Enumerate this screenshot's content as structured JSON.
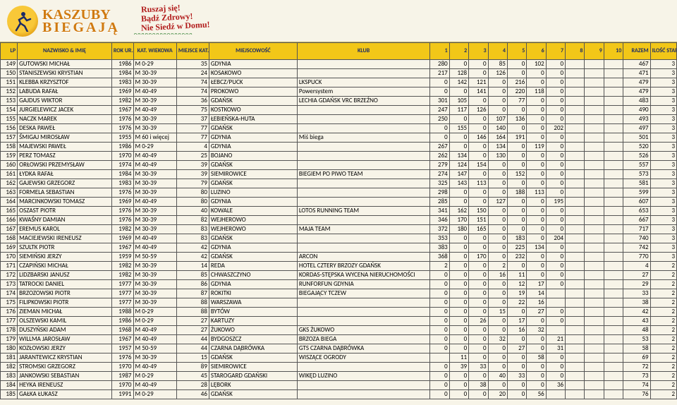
{
  "banner": {
    "logo_main": "KASZUBY",
    "logo_sub": "BIEGAJĄ",
    "slogan_l1": "Ruszaj się!",
    "slogan_l2": "Bądź Zdrowy!",
    "slogan_l3": "Nie Siedź w Domu!",
    "grass": "ᴖᴖᴖᴖᴖᴖᴖᴖᴖᴖᴖᴖᴖᴖᴖᴖ"
  },
  "headers": {
    "lp": "LP",
    "name": "NAZWISKO & IMIĘ",
    "rok": "ROK UR.",
    "kat": "KAT. WIEKOWA",
    "mkat": "MIEJSCE KAT. WIEKOWA",
    "msc": "MIEJSCOWOŚĆ",
    "klub": "KLUB",
    "s1": "1",
    "s2": "2",
    "s3": "3",
    "s4": "4",
    "s5": "5",
    "s6": "6",
    "s7": "7",
    "s8": "8",
    "s9": "9",
    "s10": "10",
    "razem": "RAZEM",
    "ilosc": "ILOŚĆ STARTÓW"
  },
  "rows": [
    {
      "lp": 149,
      "name": "GUTOWSKI MICHAŁ",
      "rok": 1986,
      "kat": "M 0-29",
      "mkat": 35,
      "msc": "GDYNIA",
      "klub": "",
      "s": [
        280,
        0,
        0,
        85,
        0,
        102,
        0,
        "",
        "",
        ""
      ],
      "razem": 467,
      "ilosc": 3
    },
    {
      "lp": 150,
      "name": "STANISZEWSKI KRYSTIAN",
      "rok": 1984,
      "kat": "M 30-39",
      "mkat": 24,
      "msc": "KOSAKOWO",
      "klub": "",
      "s": [
        217,
        128,
        0,
        126,
        0,
        0,
        0,
        "",
        "",
        ""
      ],
      "razem": 471,
      "ilosc": 3
    },
    {
      "lp": 151,
      "name": "KLEBBA KRZYSZTOF",
      "rok": 1983,
      "kat": "M 30-39",
      "mkat": 74,
      "msc": "ŁEBCZ/PUCK",
      "klub": "LKSPUCK",
      "s": [
        0,
        142,
        121,
        0,
        216,
        0,
        0,
        "",
        "",
        ""
      ],
      "razem": 479,
      "ilosc": 3
    },
    {
      "lp": 152,
      "name": "LABUDA RAFAŁ",
      "rok": 1969,
      "kat": "M 40-49",
      "mkat": 74,
      "msc": "PROKOWO",
      "klub": "Powersystem",
      "s": [
        0,
        0,
        141,
        0,
        220,
        118,
        0,
        "",
        "",
        ""
      ],
      "razem": 479,
      "ilosc": 3
    },
    {
      "lp": 153,
      "name": "GAJDUS WIKTOR",
      "rok": 1982,
      "kat": "M 30-39",
      "mkat": 36,
      "msc": "GDAŃSK",
      "klub": "LECHIA GDAŃSK VRC BRZEŹNO",
      "s": [
        301,
        105,
        0,
        0,
        77,
        0,
        0,
        "",
        "",
        ""
      ],
      "razem": 483,
      "ilosc": 3
    },
    {
      "lp": 154,
      "name": "JURGIELEWICZ JACEK",
      "rok": 1967,
      "kat": "M 40-49",
      "mkat": 75,
      "msc": "KOSTKOWO",
      "klub": "",
      "s": [
        247,
        117,
        126,
        0,
        0,
        0,
        0,
        "",
        "",
        ""
      ],
      "razem": 490,
      "ilosc": 3
    },
    {
      "lp": 155,
      "name": "NACZK MAREK",
      "rok": 1976,
      "kat": "M 30-39",
      "mkat": 37,
      "msc": "ŁEBIEŃSKA-HUTA",
      "klub": "",
      "s": [
        250,
        0,
        0,
        107,
        136,
        0,
        0,
        "",
        "",
        ""
      ],
      "razem": 493,
      "ilosc": 3
    },
    {
      "lp": 156,
      "name": "DESKA PAWEŁ",
      "rok": 1976,
      "kat": "M 30-39",
      "mkat": 77,
      "msc": "GDAŃSK",
      "klub": "",
      "s": [
        0,
        155,
        0,
        140,
        0,
        0,
        202,
        "",
        "",
        ""
      ],
      "razem": 497,
      "ilosc": 3
    },
    {
      "lp": 157,
      "name": "ŚMIGAJ MIROSŁAW",
      "rok": 1955,
      "kat": "M 60 i więcej",
      "mkat": 77,
      "msc": "GDYNIA",
      "klub": "Miś biega",
      "s": [
        0,
        0,
        146,
        164,
        191,
        0,
        0,
        "",
        "",
        ""
      ],
      "razem": 501,
      "ilosc": 3
    },
    {
      "lp": 158,
      "name": "MAJEWSKI PAWEŁ",
      "rok": 1986,
      "kat": "M 0-29",
      "mkat": 4,
      "msc": "GDYNIA",
      "klub": "",
      "s": [
        267,
        0,
        0,
        134,
        0,
        119,
        0,
        "",
        "",
        ""
      ],
      "razem": 520,
      "ilosc": 3
    },
    {
      "lp": 159,
      "name": "PERZ TOMASZ",
      "rok": 1970,
      "kat": "M 40-49",
      "mkat": 25,
      "msc": "BOJANO",
      "klub": "",
      "s": [
        262,
        134,
        0,
        130,
        0,
        0,
        0,
        "",
        "",
        ""
      ],
      "razem": 526,
      "ilosc": 3
    },
    {
      "lp": 160,
      "name": "ORŁOWSKI PRZEMYSŁAW",
      "rok": 1974,
      "kat": "M 40-49",
      "mkat": 39,
      "msc": "GDAŃSK",
      "klub": "",
      "s": [
        279,
        124,
        154,
        0,
        0,
        0,
        0,
        "",
        "",
        ""
      ],
      "razem": 557,
      "ilosc": 3
    },
    {
      "lp": 161,
      "name": "ŁYDKA RAFAŁ",
      "rok": 1984,
      "kat": "M 30-39",
      "mkat": 39,
      "msc": "SIEMIROWICE",
      "klub": "BIEGIEM PO PIWO TEAM",
      "s": [
        274,
        147,
        0,
        0,
        152,
        0,
        0,
        "",
        "",
        ""
      ],
      "razem": 573,
      "ilosc": 3
    },
    {
      "lp": 162,
      "name": "GAJEWSKI GRZEGORZ",
      "rok": 1983,
      "kat": "M 30-39",
      "mkat": 79,
      "msc": "GDAŃSK",
      "klub": "",
      "s": [
        325,
        143,
        113,
        0,
        0,
        0,
        0,
        "",
        "",
        ""
      ],
      "razem": 581,
      "ilosc": 3
    },
    {
      "lp": 163,
      "name": "FORMELA SEBASTIAN",
      "rok": 1976,
      "kat": "M 30-39",
      "mkat": 80,
      "msc": "LUZINO",
      "klub": "",
      "s": [
        298,
        0,
        0,
        0,
        188,
        113,
        0,
        "",
        "",
        ""
      ],
      "razem": 599,
      "ilosc": 3
    },
    {
      "lp": 164,
      "name": "MARCINKOWSKI TOMASZ",
      "rok": 1969,
      "kat": "M 40-49",
      "mkat": 80,
      "msc": "GDYNIA",
      "klub": "",
      "s": [
        285,
        0,
        0,
        127,
        0,
        0,
        195,
        "",
        "",
        ""
      ],
      "razem": 607,
      "ilosc": 3
    },
    {
      "lp": 165,
      "name": "OSZAST PIOTR",
      "rok": 1976,
      "kat": "M 30-39",
      "mkat": 40,
      "msc": "KOWALE",
      "klub": "LOTOS RUNNING TEAM",
      "s": [
        341,
        162,
        150,
        0,
        0,
        0,
        0,
        "",
        "",
        ""
      ],
      "razem": 653,
      "ilosc": 3
    },
    {
      "lp": 166,
      "name": "KWAŚNY DAMIAN",
      "rok": 1976,
      "kat": "M 30-39",
      "mkat": 82,
      "msc": "WEJHEROWO",
      "klub": "",
      "s": [
        346,
        170,
        151,
        0,
        0,
        0,
        0,
        "",
        "",
        ""
      ],
      "razem": 667,
      "ilosc": 3
    },
    {
      "lp": 167,
      "name": "EREMUS KAROL",
      "rok": 1982,
      "kat": "M 30-39",
      "mkat": 83,
      "msc": "WEJHEROWO",
      "klub": "MAJA TEAM",
      "s": [
        372,
        180,
        165,
        0,
        0,
        0,
        0,
        "",
        "",
        ""
      ],
      "razem": 717,
      "ilosc": 3
    },
    {
      "lp": 168,
      "name": "MACIEJEWSKI IRENEUSZ",
      "rok": 1969,
      "kat": "M 40-49",
      "mkat": 83,
      "msc": "GDAŃSK",
      "klub": "",
      "s": [
        353,
        0,
        0,
        0,
        183,
        0,
        204,
        "",
        "",
        ""
      ],
      "razem": 740,
      "ilosc": 3
    },
    {
      "lp": 169,
      "name": "SZULTK PIOTR",
      "rok": 1967,
      "kat": "M 40-49",
      "mkat": 42,
      "msc": "GDYNIA",
      "klub": "",
      "s": [
        383,
        0,
        0,
        0,
        225,
        134,
        0,
        "",
        "",
        ""
      ],
      "razem": 742,
      "ilosc": 3
    },
    {
      "lp": 170,
      "name": "SIEMIŃSKI JERZY",
      "rok": 1959,
      "kat": "M 50-59",
      "mkat": 42,
      "msc": "GDAŃSK",
      "klub": "ARCON",
      "s": [
        368,
        0,
        170,
        0,
        232,
        0,
        0,
        "",
        "",
        ""
      ],
      "razem": 770,
      "ilosc": 3
    },
    {
      "lp": 171,
      "name": "CZAPIŃSKI MICHAŁ",
      "rok": 1982,
      "kat": "M 30-39",
      "mkat": 14,
      "msc": "REDA",
      "klub": "HOTEL CZTERY BRZOZY GDAŃSK",
      "s": [
        2,
        0,
        0,
        2,
        0,
        0,
        0,
        "",
        "",
        ""
      ],
      "razem": 4,
      "ilosc": 2
    },
    {
      "lp": 172,
      "name": "LIDZBARSKI JANUSZ",
      "rok": 1982,
      "kat": "M 30-39",
      "mkat": 85,
      "msc": "CHWASZCZYNO",
      "klub": "KORDAS-STĘPSKA WYCENA NIERUCHOMOŚCI",
      "s": [
        0,
        0,
        0,
        16,
        11,
        0,
        0,
        "",
        "",
        ""
      ],
      "razem": 27,
      "ilosc": 2
    },
    {
      "lp": 173,
      "name": "TATROCKI DANIEL",
      "rok": 1977,
      "kat": "M 30-39",
      "mkat": 86,
      "msc": "GDYNIA",
      "klub": "RUNFORFUN GDYNIA",
      "s": [
        0,
        0,
        0,
        0,
        12,
        17,
        0,
        "",
        "",
        ""
      ],
      "razem": 29,
      "ilosc": 2
    },
    {
      "lp": 174,
      "name": "BRZOZOWSKI PIOTR",
      "rok": 1977,
      "kat": "M 30-39",
      "mkat": 87,
      "msc": "ROKITKI",
      "klub": "BIEGAJĄCY TCZEW",
      "s": [
        0,
        0,
        0,
        0,
        19,
        14,
        "",
        "",
        "",
        ""
      ],
      "razem": 33,
      "ilosc": 2
    },
    {
      "lp": 175,
      "name": "FILIPKOWSKI PIOTR",
      "rok": 1977,
      "kat": "M 30-39",
      "mkat": 88,
      "msc": "WARSZAWA",
      "klub": "",
      "s": [
        0,
        0,
        0,
        0,
        22,
        16,
        "",
        "",
        "",
        ""
      ],
      "razem": 38,
      "ilosc": 2
    },
    {
      "lp": 176,
      "name": "ZIEMAN MICHAŁ",
      "rok": 1988,
      "kat": "M 0-29",
      "mkat": 88,
      "msc": "BYTÓW",
      "klub": "",
      "s": [
        0,
        0,
        0,
        15,
        0,
        27,
        0,
        "",
        "",
        ""
      ],
      "razem": 42,
      "ilosc": 2
    },
    {
      "lp": 177,
      "name": "OLSZEWSKI KAMIL",
      "rok": 1986,
      "kat": "M 0-29",
      "mkat": 27,
      "msc": "KARTUZY",
      "klub": "",
      "s": [
        0,
        0,
        26,
        0,
        17,
        0,
        0,
        "",
        "",
        ""
      ],
      "razem": 43,
      "ilosc": 2
    },
    {
      "lp": 178,
      "name": "DUSZYŃSKI ADAM",
      "rok": 1968,
      "kat": "M 40-49",
      "mkat": 27,
      "msc": "ŻUKOWO",
      "klub": "GKS ŻUKOWO",
      "s": [
        0,
        0,
        0,
        0,
        16,
        32,
        "",
        "",
        "",
        ""
      ],
      "razem": 48,
      "ilosc": 2
    },
    {
      "lp": 179,
      "name": "WILLMA JAROSŁAW",
      "rok": 1967,
      "kat": "M 40-49",
      "mkat": 44,
      "msc": "BYDGOSZCZ",
      "klub": "BRZOZA BIEGA",
      "s": [
        0,
        0,
        0,
        32,
        0,
        0,
        21,
        "",
        "",
        ""
      ],
      "razem": 53,
      "ilosc": 2
    },
    {
      "lp": 180,
      "name": "KOZŁOWSKI JERZY",
      "rok": 1957,
      "kat": "M 50-59",
      "mkat": 44,
      "msc": "CZARNA DĄBRÓWKA",
      "klub": "GTS CZARNA DĄBRÓWKA",
      "s": [
        0,
        0,
        0,
        0,
        27,
        0,
        31,
        "",
        "",
        ""
      ],
      "razem": 58,
      "ilosc": 2
    },
    {
      "lp": 181,
      "name": "JARANTEWICZ KRYSTIAN",
      "rok": 1976,
      "kat": "M 30-39",
      "mkat": 15,
      "msc": "GDAŃSK",
      "klub": "WISZĄCE OGRODY",
      "s": [
        "",
        11,
        0,
        0,
        0,
        58,
        0,
        "",
        "",
        ""
      ],
      "razem": 69,
      "ilosc": 2
    },
    {
      "lp": 182,
      "name": "STROMSKI GRZEGORZ",
      "rok": 1970,
      "kat": "M 40-49",
      "mkat": 89,
      "msc": "SIEMIROWICE",
      "klub": "",
      "s": [
        0,
        39,
        33,
        0,
        0,
        0,
        0,
        "",
        "",
        ""
      ],
      "razem": 72,
      "ilosc": 2
    },
    {
      "lp": 183,
      "name": "JANKOWSKI SEBASTIAN",
      "rok": 1987,
      "kat": "M 0-29",
      "mkat": 45,
      "msc": "STAROGARD GDAŃSKI",
      "klub": "WIKĘD LUZINO",
      "s": [
        0,
        0,
        0,
        40,
        33,
        0,
        0,
        "",
        "",
        ""
      ],
      "razem": 73,
      "ilosc": 2
    },
    {
      "lp": 184,
      "name": "HEYKA IRENEUSZ",
      "rok": 1970,
      "kat": "M 40-49",
      "mkat": 28,
      "msc": "LĘBORK",
      "klub": "",
      "s": [
        0,
        0,
        38,
        0,
        0,
        0,
        36,
        "",
        "",
        ""
      ],
      "razem": 74,
      "ilosc": 2
    },
    {
      "lp": 185,
      "name": "GAŁKA ŁUKASZ",
      "rok": 1991,
      "kat": "M 0-29",
      "mkat": 46,
      "msc": "GDAŃSK",
      "klub": "",
      "s": [
        0,
        0,
        0,
        20,
        0,
        56,
        "",
        "",
        "",
        ""
      ],
      "razem": 76,
      "ilosc": 2
    }
  ]
}
